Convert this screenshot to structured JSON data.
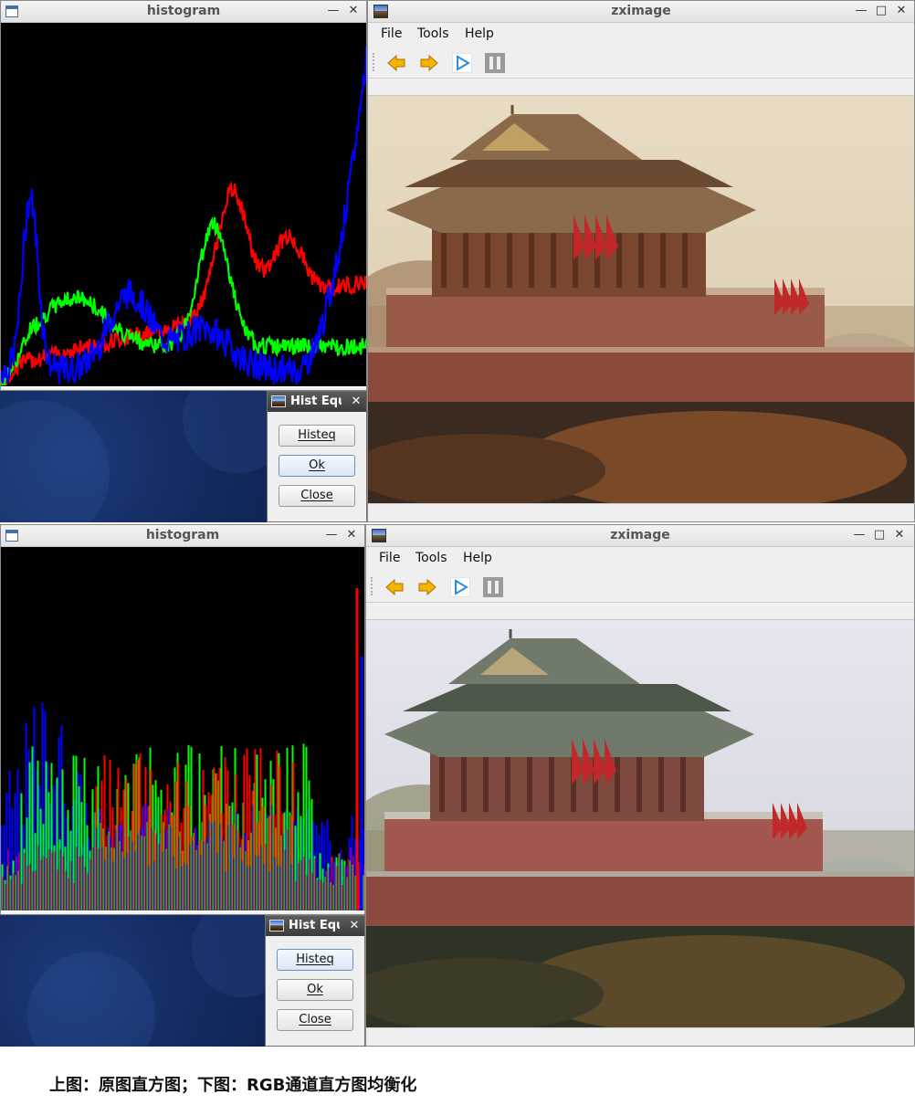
{
  "histogram_window": {
    "title": "histogram"
  },
  "viewer_window": {
    "title": "zximage",
    "menu": {
      "file": "File",
      "tools": "Tools",
      "help": "Help"
    },
    "toolbar_icons": [
      "back-arrow-icon",
      "forward-arrow-icon",
      "play-icon",
      "pause-icon"
    ]
  },
  "dialog": {
    "title": "Hist Equ",
    "buttons": {
      "histeq": "Histeq",
      "ok": "Ok",
      "close": "Close"
    }
  },
  "panels": [
    {
      "label": "original",
      "histogram_kind": "smooth",
      "focused_button": "ok"
    },
    {
      "label": "equalized",
      "histogram_kind": "equalized",
      "focused_button": "histeq"
    }
  ],
  "colors": {
    "red": "#ff0000",
    "green": "#00ff00",
    "blue": "#0000ff",
    "hist_bg": "#000000"
  },
  "caption": "上图：原图直方图；下图：RGB通道直方图均衡化"
}
